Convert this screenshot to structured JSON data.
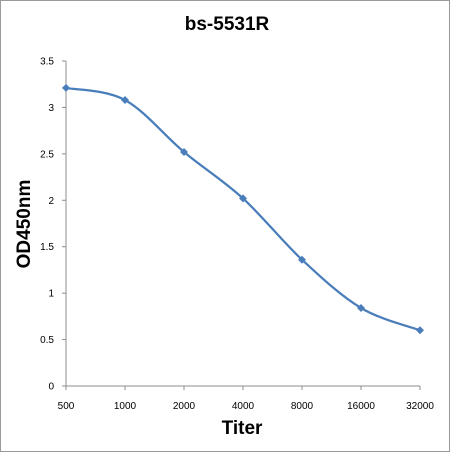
{
  "chart_data": {
    "type": "line",
    "title": "bs-5531R",
    "xlabel": "Titer",
    "ylabel": "OD450nm",
    "categories": [
      "500",
      "1000",
      "2000",
      "4000",
      "8000",
      "16000",
      "32000"
    ],
    "series": [
      {
        "values": [
          3.21,
          3.08,
          2.52,
          2.02,
          1.36,
          0.84,
          0.6
        ]
      }
    ],
    "ylim": [
      0,
      3.5
    ],
    "yticks": [
      "0",
      "0.5",
      "1",
      "1.5",
      "2",
      "2.5",
      "3",
      "3.5"
    ],
    "grid": false,
    "legend": "none",
    "colors": {
      "line": "#4a7ebb",
      "marker": "#4a7ebb",
      "axis": "#8c8c8c"
    },
    "marker": "diamond"
  }
}
